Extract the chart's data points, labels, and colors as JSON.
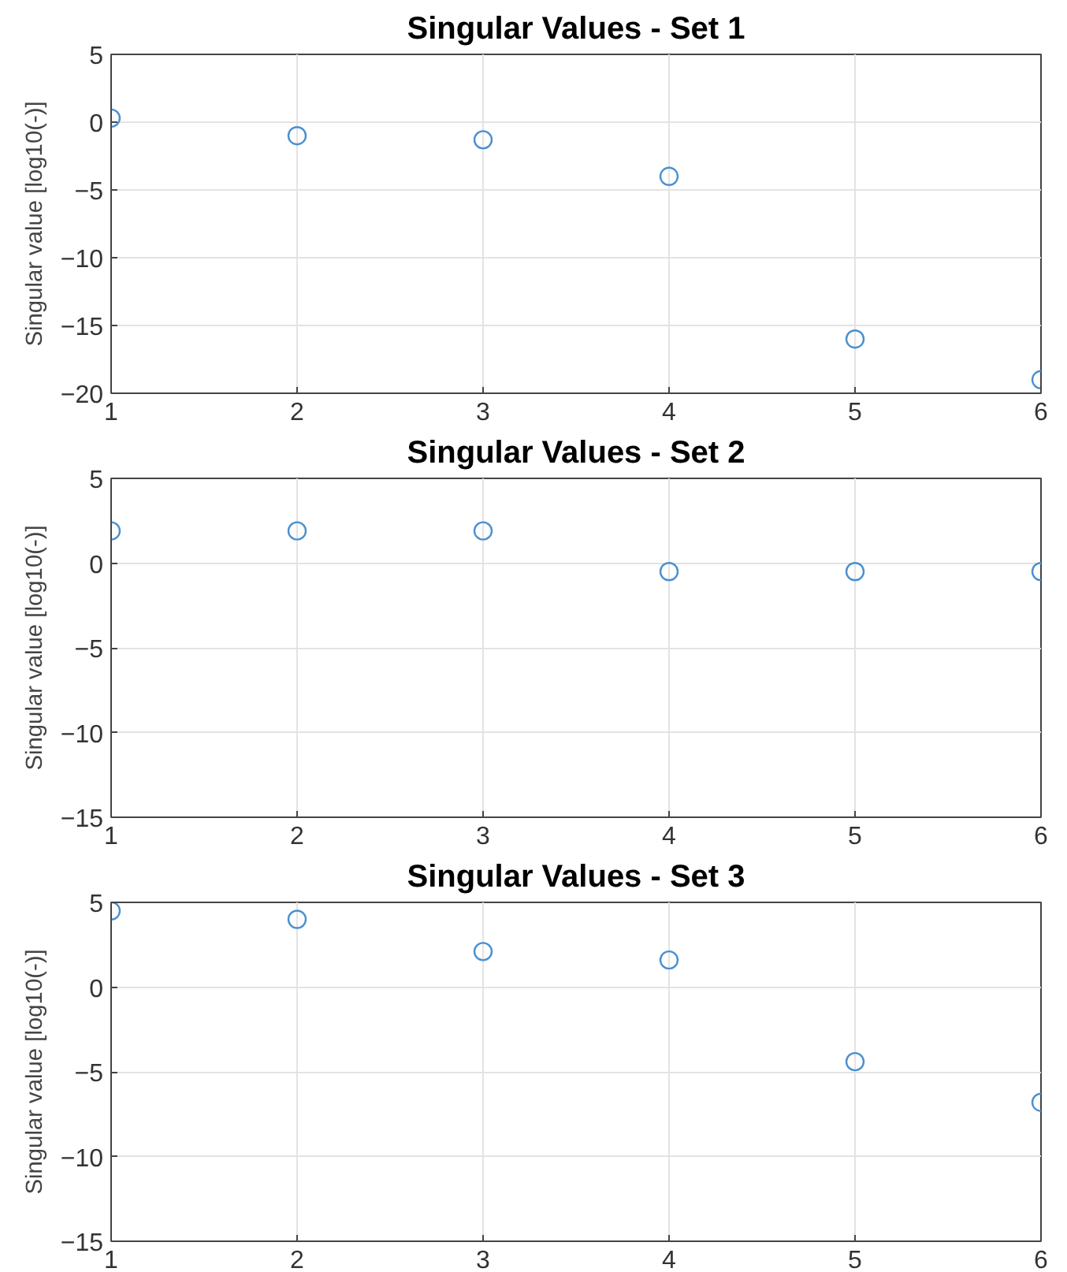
{
  "chart_data": [
    {
      "type": "scatter",
      "title": "Singular Values - Set 1",
      "ylabel": "Singular value [log10(-)]",
      "x": [
        1,
        2,
        3,
        4,
        5,
        6
      ],
      "values": [
        0.3,
        -1,
        -1.3,
        -4,
        -16,
        -19
      ],
      "color": "#4a90d0",
      "marker": "circle",
      "xlim": [
        1,
        6
      ],
      "xticks": [
        1,
        2,
        3,
        4,
        5,
        6
      ],
      "ylim": [
        -20,
        5
      ],
      "yticks": [
        -20,
        -15,
        -10,
        -5,
        0,
        5
      ],
      "grid": true
    },
    {
      "type": "scatter",
      "title": "Singular Values - Set 2",
      "ylabel": "Singular value [log10(-)]",
      "x": [
        1,
        2,
        3,
        4,
        5,
        6
      ],
      "values": [
        1.9,
        1.9,
        1.9,
        -0.5,
        -0.5,
        -0.5
      ],
      "color": "#4a90d0",
      "marker": "circle",
      "xlim": [
        1,
        6
      ],
      "xticks": [
        1,
        2,
        3,
        4,
        5,
        6
      ],
      "ylim": [
        -15,
        5
      ],
      "yticks": [
        -15,
        -10,
        -5,
        0,
        5
      ],
      "grid": true
    },
    {
      "type": "scatter",
      "title": "Singular Values - Set 3",
      "ylabel": "Singular value [log10(-)]",
      "x": [
        1,
        2,
        3,
        4,
        5,
        6
      ],
      "values": [
        4.5,
        4,
        2.1,
        1.6,
        -4.4,
        -6.8
      ],
      "color": "#4a90d0",
      "marker": "circle",
      "xlim": [
        1,
        6
      ],
      "xticks": [
        1,
        2,
        3,
        4,
        5,
        6
      ],
      "ylim": [
        -15,
        5
      ],
      "yticks": [
        -15,
        -10,
        -5,
        0,
        5
      ],
      "grid": true
    }
  ]
}
